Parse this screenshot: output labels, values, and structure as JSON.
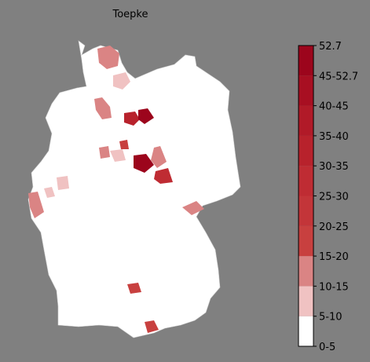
{
  "title": "Toepke",
  "colorbar": {
    "labels": [
      "0-5",
      "5-10",
      "10-15",
      "15-20",
      "20-25",
      "25-30",
      "30-35",
      "35-40",
      "40-45",
      "45-52.7",
      "52.7"
    ],
    "colors": [
      "#ffffff",
      "#f0c2c2",
      "#da8484",
      "#c8403f",
      "#c33539",
      "#bf2c33",
      "#b8222c",
      "#b11a28",
      "#a80f22",
      "#9c051c"
    ]
  }
}
